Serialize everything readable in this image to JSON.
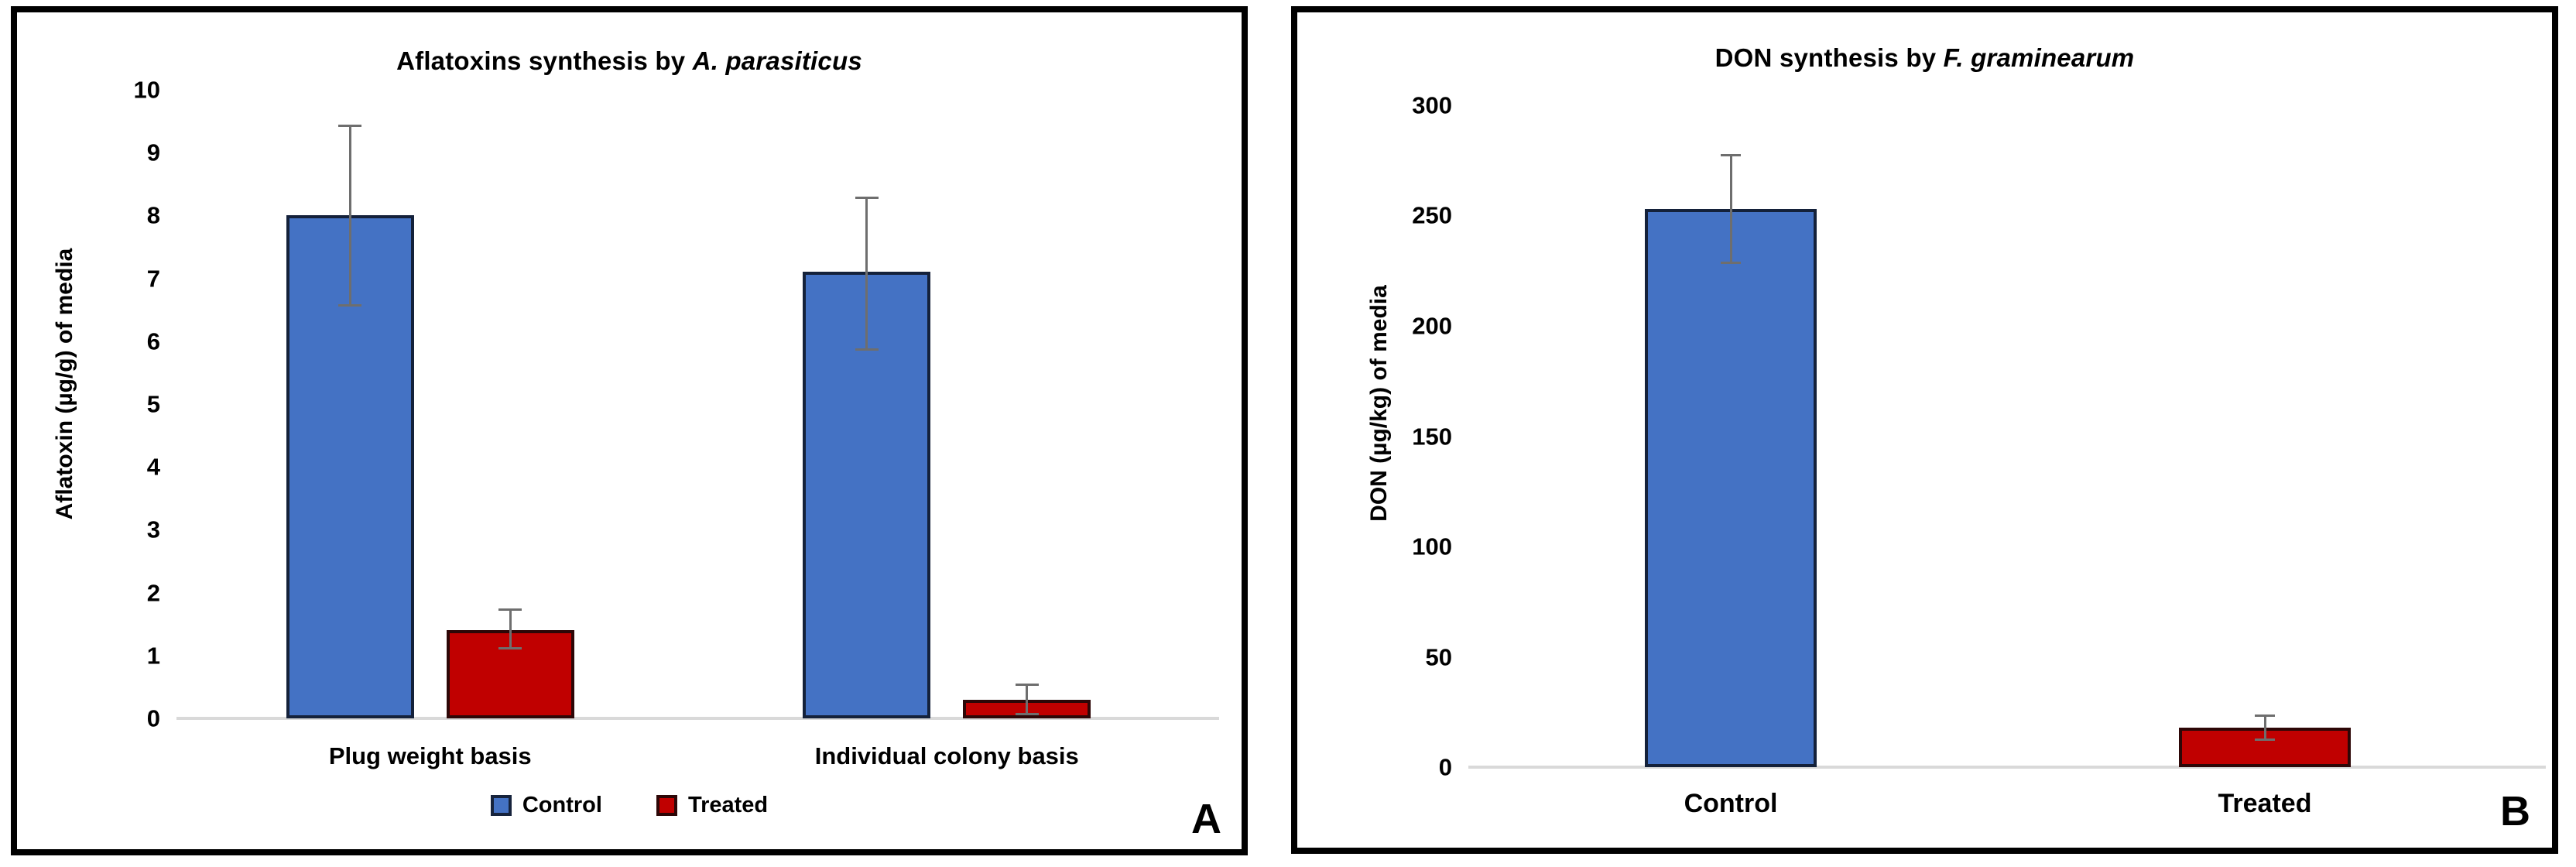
{
  "chart_data": [
    {
      "type": "bar",
      "panel_label": "A",
      "title": {
        "plain": "Aflatoxins synthesis by ",
        "italic": "A. parasiticus",
        "full": "Aflatoxins synthesis by A. parasiticus"
      },
      "ylabel": "Aflatoxin (µg/g) of media",
      "xlabel": "",
      "ylim": [
        0,
        10
      ],
      "yticks": [
        0,
        1,
        2,
        3,
        4,
        5,
        6,
        7,
        8,
        9,
        10
      ],
      "grid": false,
      "categories": [
        "Plug weight basis",
        "Individual colony basis"
      ],
      "groups": [
        {
          "category": "Plug weight basis",
          "bars": [
            {
              "name": "Control",
              "value": 8.0,
              "error_up": 1.45,
              "error_down": 1.45,
              "color": "#4472C4"
            },
            {
              "name": "Treated",
              "value": 1.4,
              "error_up": 0.35,
              "error_down": 0.3,
              "color": "#C00000"
            }
          ]
        },
        {
          "category": "Individual colony basis",
          "bars": [
            {
              "name": "Control",
              "value": 7.1,
              "error_up": 1.2,
              "error_down": 1.25,
              "color": "#4472C4"
            },
            {
              "name": "Treated",
              "value": 0.3,
              "error_up": 0.25,
              "error_down": 0.25,
              "color": "#C00000"
            }
          ]
        }
      ],
      "legend": {
        "position": "bottom",
        "entries": [
          {
            "label": "Control",
            "color": "#4472C4"
          },
          {
            "label": "Treated",
            "color": "#C00000"
          }
        ]
      }
    },
    {
      "type": "bar",
      "panel_label": "B",
      "title": {
        "plain": "DON synthesis by ",
        "italic": "F. graminearum",
        "full": "DON synthesis by F. graminearum"
      },
      "ylabel": "DON (µg/kg) of media",
      "xlabel": "",
      "ylim": [
        0,
        300
      ],
      "yticks": [
        0,
        50,
        100,
        150,
        200,
        250,
        300
      ],
      "grid": false,
      "categories": [
        "Control",
        "Treated"
      ],
      "groups": [
        {
          "category": "Control",
          "bars": [
            {
              "name": "Control",
              "value": 253,
              "error_up": 25,
              "error_down": 25,
              "color": "#4472C4"
            }
          ]
        },
        {
          "category": "Treated",
          "bars": [
            {
              "name": "Treated",
              "value": 18,
              "error_up": 6,
              "error_down": 6,
              "color": "#C00000"
            }
          ]
        }
      ],
      "legend": null
    }
  ],
  "style": {
    "bar_fill_control": "#4472C4",
    "bar_fill_treated": "#C00000",
    "error_bar_color": "#6E6E6E",
    "baseline_color": "#D9D9D9",
    "panel_border_color": "#000000",
    "background": "#FFFFFF",
    "text_color": "#000000"
  }
}
